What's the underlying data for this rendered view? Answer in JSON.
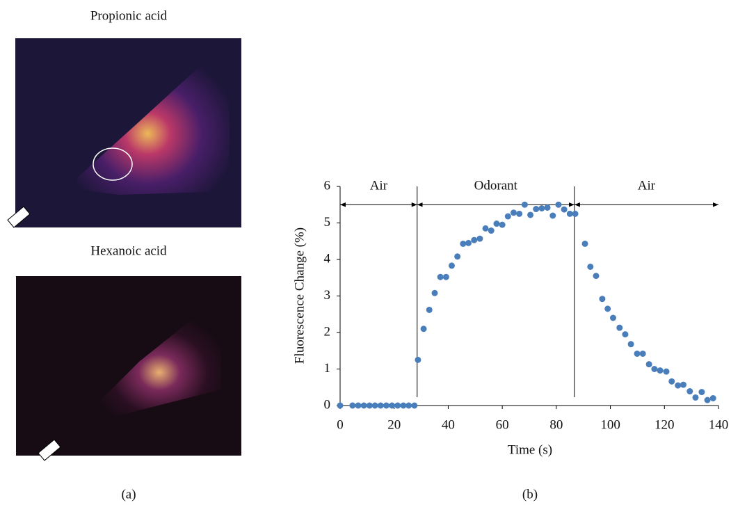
{
  "images": [
    {
      "label": "Propionic acid"
    },
    {
      "label": "Hexanoic acid"
    }
  ],
  "captions": [
    "(a)",
    "(b)"
  ],
  "chart_data": {
    "type": "scatter",
    "xlabel": "Time (s)",
    "ylabel": "Fluorescence Change (%)",
    "color": "#4a7ebb",
    "x": [
      0,
      4.6,
      6.7,
      8.8,
      10.9,
      12.9,
      15,
      17.1,
      19.2,
      21.3,
      23.4,
      25.4,
      27.5,
      28.8,
      30.9,
      33,
      35,
      37.1,
      39.2,
      41.3,
      43.4,
      45.5,
      47.5,
      49.6,
      51.7,
      53.8,
      55.9,
      57.9,
      60,
      62.1,
      64.2,
      66.3,
      68.3,
      70.4,
      72.5,
      74.6,
      76.7,
      78.7,
      80.8,
      82.9,
      85,
      87,
      90.6,
      92.6,
      94.7,
      97,
      99,
      101,
      103.4,
      105.5,
      107.6,
      109.9,
      112,
      114.3,
      116.3,
      118.4,
      120.7,
      122.7,
      125,
      127,
      129.4,
      131.5,
      133.8,
      135.9,
      138
    ],
    "values": [
      0,
      0,
      0,
      0,
      0,
      0,
      0,
      0,
      0,
      0,
      0,
      0,
      0,
      1.25,
      2.1,
      2.62,
      3.08,
      3.52,
      3.52,
      3.83,
      4.08,
      4.43,
      4.45,
      4.53,
      4.57,
      4.85,
      4.79,
      4.98,
      4.95,
      5.18,
      5.28,
      5.25,
      5.5,
      5.22,
      5.38,
      5.4,
      5.42,
      5.2,
      5.5,
      5.37,
      5.25,
      5.25,
      4.43,
      3.8,
      3.55,
      2.92,
      2.65,
      2.4,
      2.13,
      1.95,
      1.68,
      1.42,
      1.42,
      1.13,
      1.0,
      0.96,
      0.93,
      0.66,
      0.55,
      0.57,
      0.39,
      0.22,
      0.37,
      0.15,
      0.2
    ],
    "xlim": [
      0,
      140
    ],
    "xticks": [
      0,
      20,
      40,
      60,
      80,
      100,
      120,
      140
    ],
    "ylim": [
      0,
      6
    ],
    "yticks": [
      0,
      1,
      2,
      3,
      4,
      5,
      6
    ],
    "regions": [
      {
        "label": "Air",
        "start": 0,
        "end": 28.5
      },
      {
        "label": "Odorant",
        "start": 28.5,
        "end": 86.7
      },
      {
        "label": "Air",
        "start": 86.7,
        "end": 140
      }
    ],
    "arrow_level": 5.5
  }
}
